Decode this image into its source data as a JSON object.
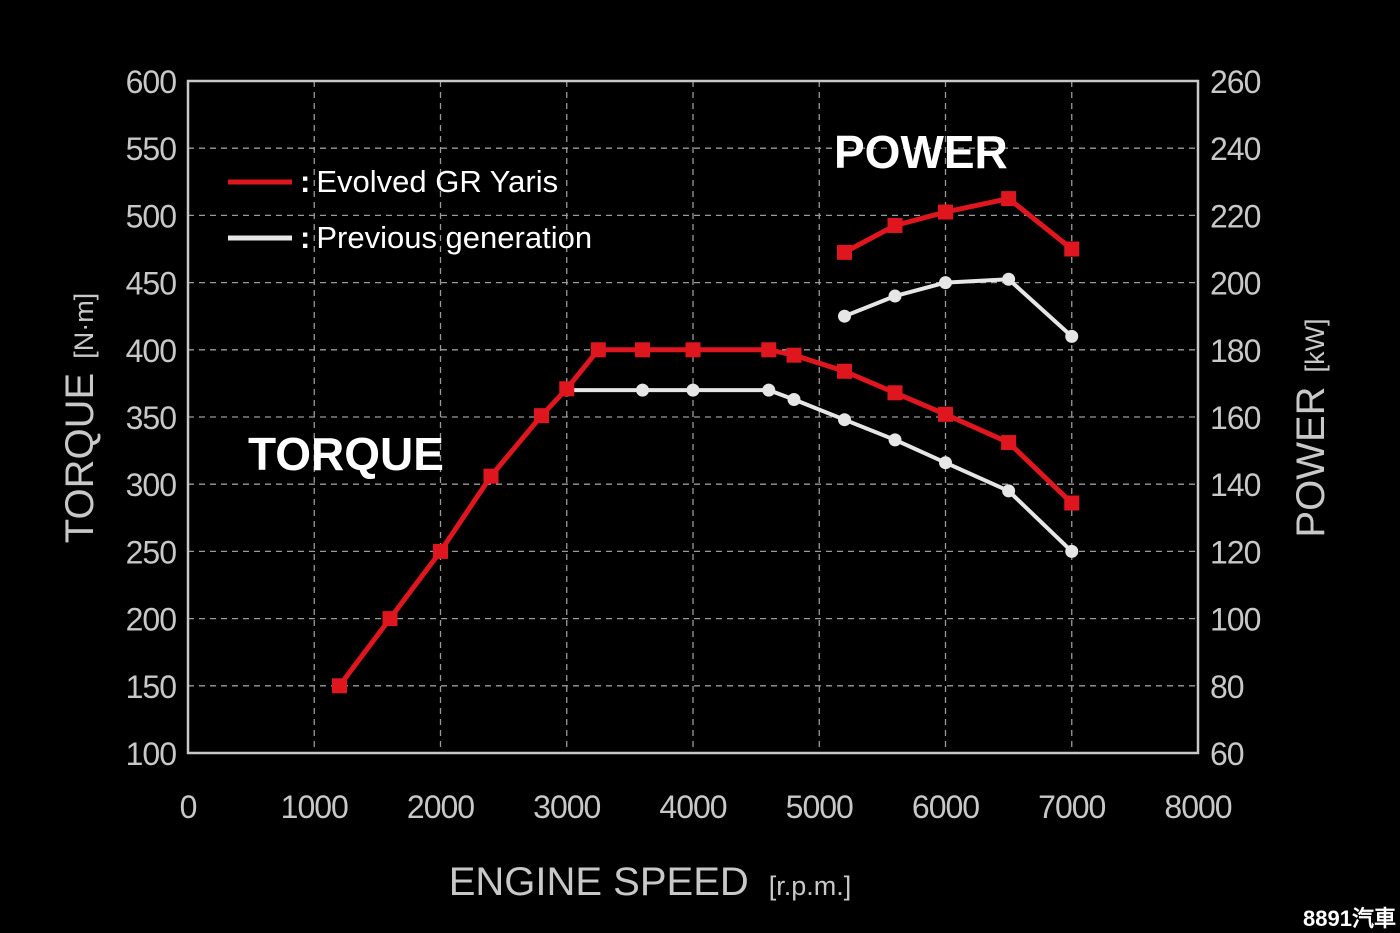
{
  "colors": {
    "background": "#000000",
    "axis": "#c8c8c8",
    "grid": "#9a9a9a",
    "text": "#c8c8c8",
    "label_bright": "#ffffff",
    "evolved": "#e0161f",
    "previous": "#e6e6e6"
  },
  "chart_data": {
    "type": "line",
    "x_axis": {
      "label": "ENGINE SPEED",
      "unit": "[r.p.m.]",
      "range": [
        0,
        8000
      ],
      "ticks": [
        0,
        1000,
        2000,
        3000,
        4000,
        5000,
        6000,
        7000,
        8000
      ],
      "tick_labels": [
        "0",
        "1000",
        "2000",
        "3000",
        "4000",
        "5000",
        "6000",
        "7000",
        "8000"
      ]
    },
    "y_left": {
      "label": "TORQUE",
      "unit": "[N·m]",
      "range": [
        100,
        600
      ],
      "ticks": [
        100,
        150,
        200,
        250,
        300,
        350,
        400,
        450,
        500,
        550,
        600
      ],
      "tick_labels": [
        "100",
        "150",
        "200",
        "250",
        "300",
        "350",
        "400",
        "450",
        "500",
        "550",
        "600"
      ]
    },
    "y_right": {
      "label": "POWER",
      "unit": "[kW]",
      "range": [
        60,
        260
      ],
      "ticks": [
        60,
        80,
        100,
        120,
        140,
        160,
        180,
        200,
        220,
        240,
        260
      ],
      "tick_labels": [
        "60",
        "80",
        "100",
        "120",
        "140",
        "160",
        "180",
        "200",
        "220",
        "240",
        "260"
      ]
    },
    "grid": true,
    "legend": {
      "placement": "top-left",
      "separator": ":",
      "entries": [
        {
          "key": "evolved",
          "label": "Evolved GR Yaris"
        },
        {
          "key": "previous",
          "label": "Previous generation"
        }
      ]
    },
    "annotations": {
      "torque_label": "TORQUE",
      "power_label": "POWER"
    },
    "series": [
      {
        "name": "Evolved GR Yaris",
        "key": "evolved",
        "quantity": "torque",
        "axis": "left",
        "marker": "square",
        "x": [
          1200,
          1600,
          2000,
          2400,
          2800,
          3000,
          3250,
          3600,
          4000,
          4600,
          4800,
          5200,
          5600,
          6000,
          6500,
          7000
        ],
        "y": [
          150,
          200,
          250,
          306,
          351,
          371,
          400,
          400,
          400,
          400,
          396,
          384,
          368,
          352,
          331,
          286
        ]
      },
      {
        "name": "Previous generation",
        "key": "previous",
        "quantity": "torque",
        "axis": "left",
        "marker": "circle",
        "x": [
          3000,
          3600,
          4000,
          4600,
          4800,
          5200,
          5600,
          6000,
          6500,
          7000
        ],
        "y": [
          370,
          370,
          370,
          370,
          363,
          348,
          333,
          316,
          295,
          250
        ]
      },
      {
        "name": "Evolved GR Yaris",
        "key": "evolved",
        "quantity": "power",
        "axis": "right",
        "marker": "square",
        "x": [
          5200,
          5600,
          6000,
          6500,
          7000
        ],
        "y": [
          209,
          217,
          221,
          225,
          210
        ]
      },
      {
        "name": "Previous generation",
        "key": "previous",
        "quantity": "power",
        "axis": "right",
        "marker": "circle",
        "x": [
          5200,
          5600,
          6000,
          6500,
          7000
        ],
        "y": [
          190,
          196,
          200,
          201,
          184
        ]
      }
    ]
  },
  "watermark": "8891汽車"
}
